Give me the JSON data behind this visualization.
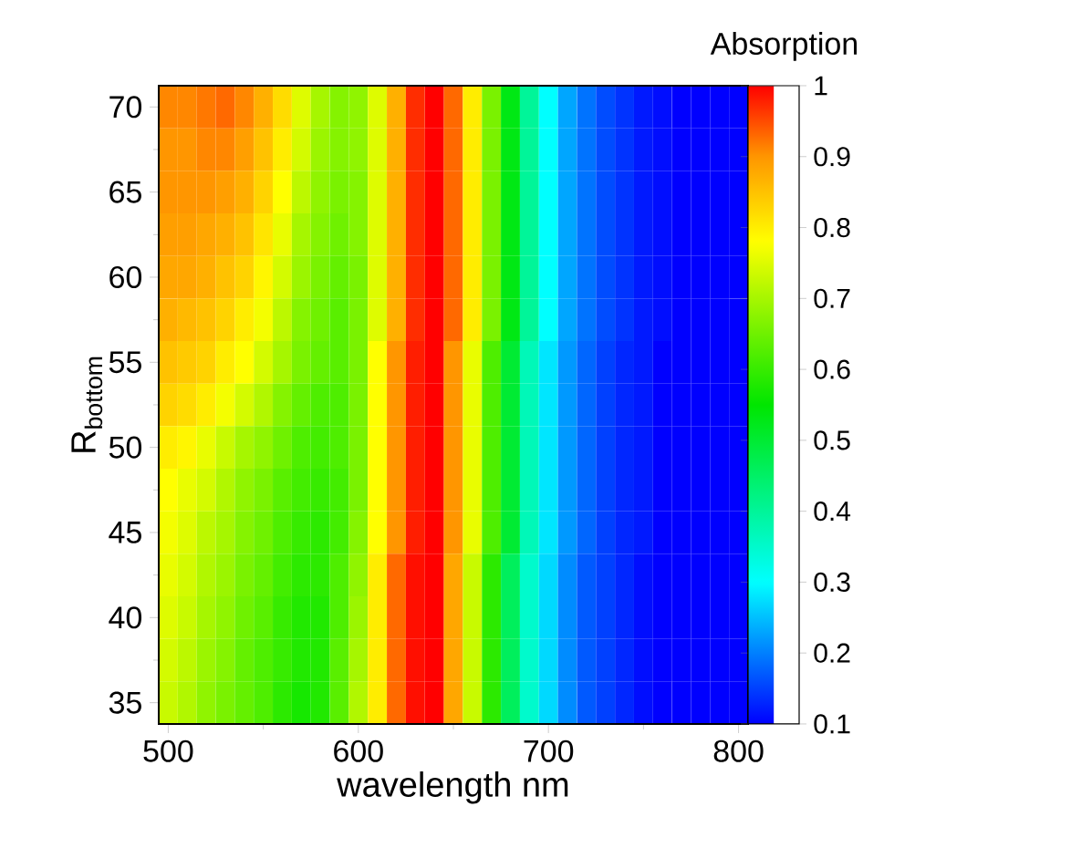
{
  "chart_data": {
    "type": "heatmap",
    "xlabel": "wavelength nm",
    "ylabel": "R$_{bottom}$",
    "clabel": "Absorption",
    "categories": [
      "500",
      null,
      null,
      null,
      null,
      null,
      null,
      null,
      null,
      null,
      "600",
      null,
      null,
      null,
      null,
      null,
      null,
      null,
      null,
      null,
      "700",
      null,
      null,
      null,
      null,
      null,
      null,
      null,
      null,
      null,
      "800"
    ],
    "y_categories": [
      "70",
      null,
      "65",
      null,
      "60",
      null,
      "55",
      null,
      "50",
      null,
      "45",
      null,
      "40",
      null,
      "35"
    ],
    "clim": [
      0.1,
      1
    ],
    "cticks": [
      0.1,
      0.2,
      0.3,
      0.4,
      0.5,
      0.6,
      0.7,
      0.8,
      0.9,
      1
    ],
    "cells": [
      [
        0.91,
        0.91,
        0.92,
        0.93,
        0.91,
        0.87,
        0.82,
        0.75,
        0.7,
        0.67,
        0.68,
        0.75,
        0.87,
        0.97,
        1.0,
        0.93,
        0.8,
        0.66,
        0.53,
        0.4,
        0.3,
        0.23,
        0.19,
        0.16,
        0.14,
        0.12,
        0.11,
        0.1,
        0.1,
        0.1,
        0.1
      ],
      [
        0.9,
        0.9,
        0.91,
        0.91,
        0.89,
        0.85,
        0.8,
        0.74,
        0.69,
        0.67,
        0.68,
        0.75,
        0.87,
        0.97,
        1.0,
        0.93,
        0.8,
        0.66,
        0.53,
        0.4,
        0.3,
        0.23,
        0.19,
        0.16,
        0.14,
        0.12,
        0.11,
        0.1,
        0.1,
        0.1,
        0.1
      ],
      [
        0.9,
        0.9,
        0.9,
        0.89,
        0.87,
        0.83,
        0.78,
        0.72,
        0.68,
        0.66,
        0.67,
        0.75,
        0.87,
        0.97,
        1.0,
        0.93,
        0.8,
        0.66,
        0.53,
        0.4,
        0.3,
        0.23,
        0.19,
        0.16,
        0.14,
        0.12,
        0.11,
        0.1,
        0.1,
        0.1,
        0.1
      ],
      [
        0.89,
        0.89,
        0.88,
        0.87,
        0.85,
        0.81,
        0.76,
        0.7,
        0.67,
        0.65,
        0.67,
        0.75,
        0.87,
        0.97,
        1.0,
        0.93,
        0.8,
        0.66,
        0.53,
        0.4,
        0.3,
        0.23,
        0.19,
        0.16,
        0.14,
        0.12,
        0.11,
        0.1,
        0.1,
        0.1,
        0.1
      ],
      [
        0.88,
        0.88,
        0.87,
        0.85,
        0.83,
        0.79,
        0.74,
        0.69,
        0.66,
        0.64,
        0.66,
        0.75,
        0.87,
        0.97,
        1.0,
        0.93,
        0.8,
        0.66,
        0.53,
        0.4,
        0.3,
        0.23,
        0.19,
        0.16,
        0.14,
        0.12,
        0.11,
        0.1,
        0.1,
        0.1,
        0.1
      ],
      [
        0.87,
        0.86,
        0.85,
        0.83,
        0.8,
        0.77,
        0.72,
        0.67,
        0.65,
        0.63,
        0.66,
        0.75,
        0.87,
        0.97,
        1.0,
        0.93,
        0.8,
        0.66,
        0.53,
        0.4,
        0.3,
        0.23,
        0.19,
        0.16,
        0.14,
        0.12,
        0.11,
        0.1,
        0.1,
        0.1,
        0.1
      ],
      [
        0.85,
        0.84,
        0.83,
        0.8,
        0.78,
        0.74,
        0.7,
        0.66,
        0.64,
        0.63,
        0.66,
        0.78,
        0.9,
        0.98,
        1.0,
        0.9,
        0.76,
        0.62,
        0.5,
        0.37,
        0.28,
        0.22,
        0.18,
        0.15,
        0.13,
        0.12,
        0.1,
        0.1,
        0.1,
        0.1,
        0.1
      ],
      [
        0.83,
        0.82,
        0.8,
        0.77,
        0.74,
        0.71,
        0.67,
        0.64,
        0.62,
        0.62,
        0.66,
        0.78,
        0.9,
        0.98,
        1.0,
        0.9,
        0.76,
        0.62,
        0.5,
        0.37,
        0.28,
        0.22,
        0.18,
        0.15,
        0.13,
        0.12,
        0.1,
        0.1,
        0.1,
        0.1,
        0.1
      ],
      [
        0.8,
        0.79,
        0.76,
        0.73,
        0.7,
        0.68,
        0.65,
        0.62,
        0.61,
        0.62,
        0.66,
        0.78,
        0.9,
        0.98,
        1.0,
        0.9,
        0.76,
        0.62,
        0.5,
        0.37,
        0.28,
        0.22,
        0.18,
        0.15,
        0.13,
        0.12,
        0.1,
        0.1,
        0.1,
        0.1,
        0.1
      ],
      [
        0.78,
        0.76,
        0.74,
        0.71,
        0.68,
        0.66,
        0.63,
        0.61,
        0.6,
        0.61,
        0.66,
        0.78,
        0.9,
        0.98,
        1.0,
        0.9,
        0.76,
        0.62,
        0.5,
        0.37,
        0.28,
        0.22,
        0.18,
        0.15,
        0.13,
        0.12,
        0.1,
        0.1,
        0.1,
        0.1,
        0.1
      ],
      [
        0.77,
        0.75,
        0.72,
        0.7,
        0.67,
        0.65,
        0.62,
        0.6,
        0.59,
        0.61,
        0.67,
        0.78,
        0.9,
        0.98,
        1.0,
        0.9,
        0.76,
        0.62,
        0.5,
        0.37,
        0.28,
        0.22,
        0.18,
        0.15,
        0.13,
        0.12,
        0.1,
        0.1,
        0.1,
        0.1,
        0.1
      ],
      [
        0.76,
        0.74,
        0.71,
        0.69,
        0.66,
        0.64,
        0.61,
        0.59,
        0.59,
        0.62,
        0.68,
        0.8,
        0.93,
        0.99,
        1.0,
        0.88,
        0.73,
        0.59,
        0.46,
        0.35,
        0.27,
        0.21,
        0.17,
        0.15,
        0.13,
        0.11,
        0.1,
        0.1,
        0.1,
        0.1,
        0.1
      ],
      [
        0.75,
        0.73,
        0.7,
        0.68,
        0.65,
        0.63,
        0.6,
        0.58,
        0.58,
        0.62,
        0.69,
        0.8,
        0.93,
        0.99,
        1.0,
        0.88,
        0.73,
        0.59,
        0.46,
        0.35,
        0.27,
        0.21,
        0.17,
        0.15,
        0.13,
        0.11,
        0.1,
        0.1,
        0.1,
        0.1,
        0.1
      ],
      [
        0.74,
        0.72,
        0.69,
        0.67,
        0.64,
        0.62,
        0.6,
        0.58,
        0.58,
        0.63,
        0.7,
        0.8,
        0.93,
        0.99,
        1.0,
        0.88,
        0.73,
        0.59,
        0.46,
        0.35,
        0.27,
        0.21,
        0.17,
        0.15,
        0.13,
        0.11,
        0.1,
        0.1,
        0.1,
        0.1,
        0.1
      ],
      [
        0.73,
        0.71,
        0.68,
        0.66,
        0.64,
        0.62,
        0.59,
        0.57,
        0.58,
        0.63,
        0.71,
        0.8,
        0.93,
        0.99,
        1.0,
        0.88,
        0.73,
        0.59,
        0.46,
        0.35,
        0.27,
        0.21,
        0.17,
        0.15,
        0.13,
        0.11,
        0.1,
        0.1,
        0.1,
        0.1,
        0.1
      ]
    ]
  }
}
